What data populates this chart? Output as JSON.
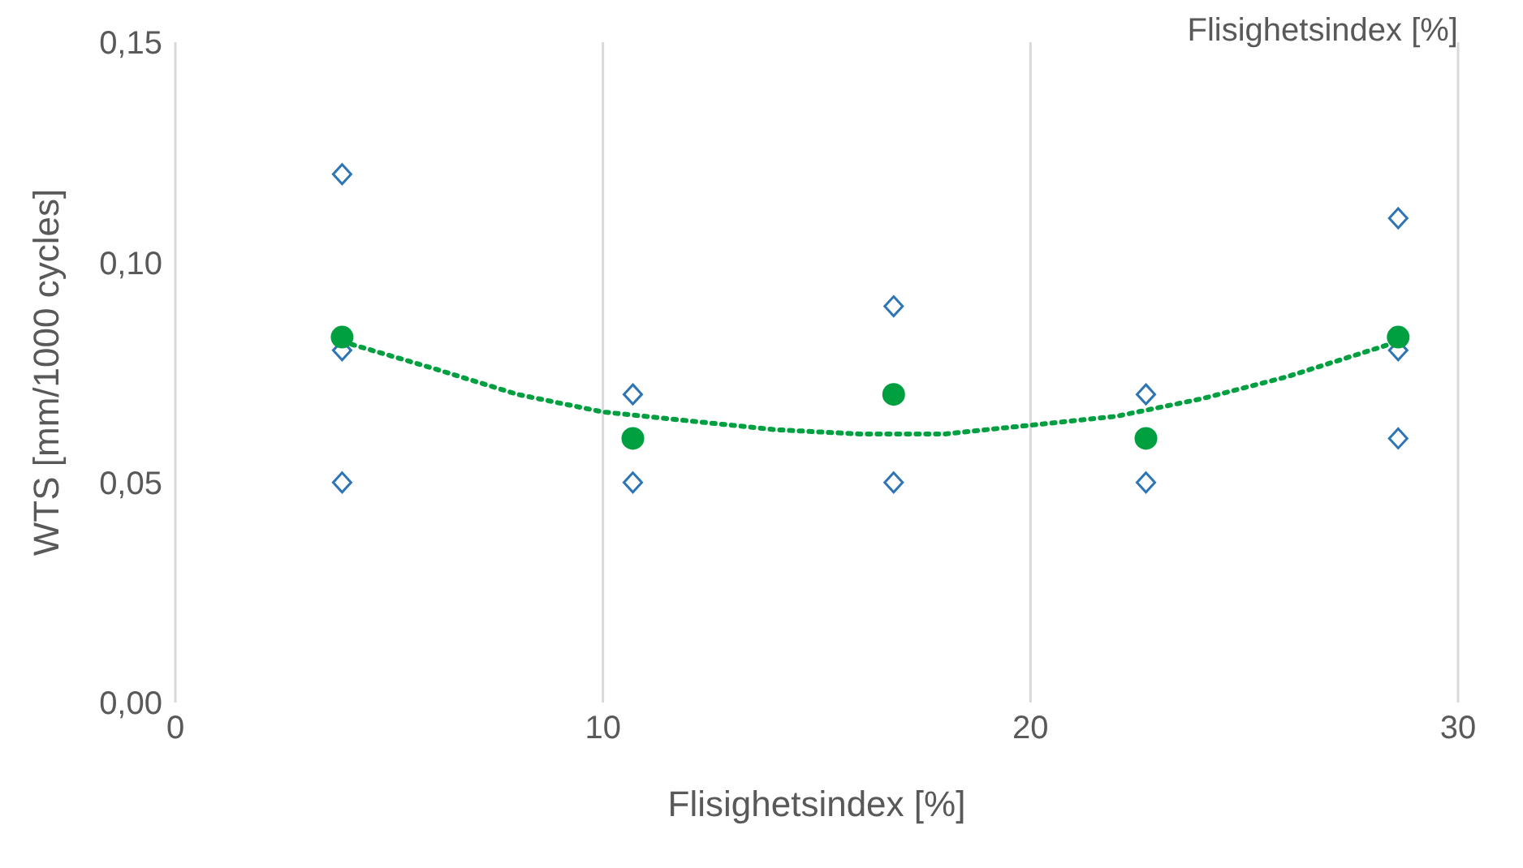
{
  "chart_data": {
    "type": "scatter",
    "xlabel": "Flisighetsindex [%]",
    "ylabel": "WTS [mm/1000 cycles]",
    "annotations": [
      "Flisighetsindex [%]"
    ],
    "xlim": [
      0,
      30
    ],
    "xticks": [
      0,
      10,
      20,
      30
    ],
    "ylim": [
      0,
      0.15
    ],
    "yticks": [
      {
        "value": 0,
        "label": "0,00"
      },
      {
        "value": 0.05,
        "label": "0,05"
      },
      {
        "value": 0.1,
        "label": "0,10"
      },
      {
        "value": 0.15,
        "label": "0,15"
      }
    ],
    "grid": "x",
    "series": [
      {
        "marker": "diamond",
        "color": "#2e75b6",
        "x": [
          3.9,
          3.9,
          3.9,
          10.7,
          10.7,
          16.8,
          16.8,
          22.7,
          22.7,
          28.6,
          28.6,
          28.6
        ],
        "values": [
          0.12,
          0.08,
          0.05,
          0.07,
          0.05,
          0.09,
          0.05,
          0.07,
          0.05,
          0.11,
          0.08,
          0.06
        ]
      },
      {
        "marker": "circle",
        "color": "#00a040",
        "x": [
          3.9,
          10.7,
          16.8,
          22.7,
          28.6
        ],
        "values": [
          0.083,
          0.06,
          0.07,
          0.06,
          0.083
        ]
      },
      {
        "type": "line",
        "marker": "none",
        "line_style": "dotted",
        "color": "#00a040",
        "x": [
          3.9,
          6,
          8,
          10,
          12,
          14,
          16,
          18,
          20,
          22,
          24,
          26,
          28.6
        ],
        "values": [
          0.082,
          0.076,
          0.07,
          0.066,
          0.064,
          0.062,
          0.061,
          0.061,
          0.063,
          0.065,
          0.069,
          0.074,
          0.082
        ]
      }
    ]
  }
}
